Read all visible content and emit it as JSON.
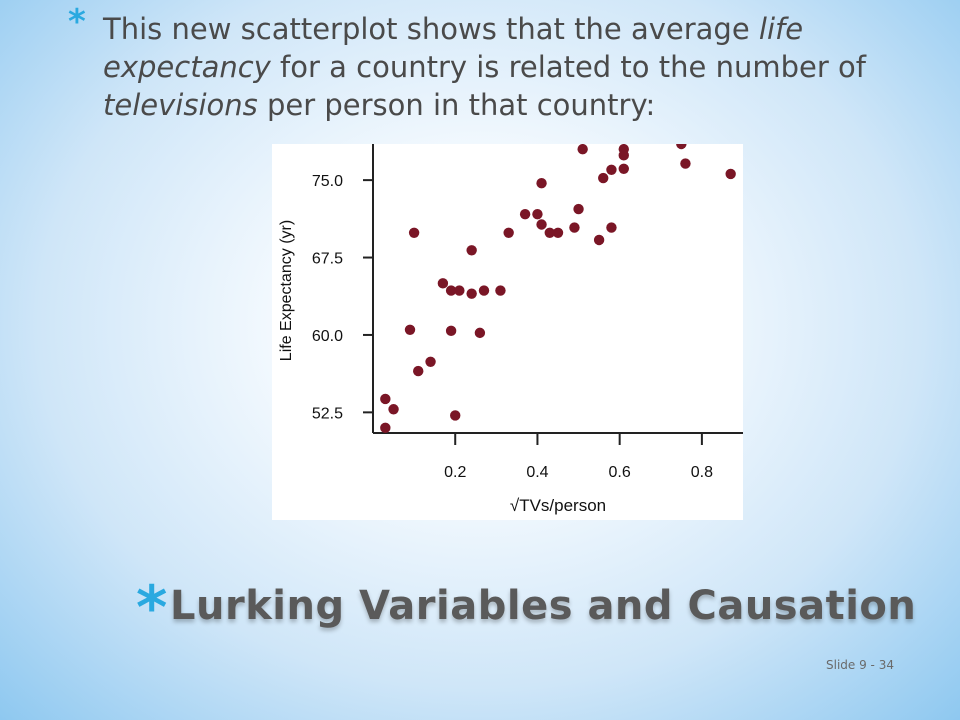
{
  "body": {
    "segments": [
      {
        "text": "This new scatterplot shows that the average ",
        "italic": false
      },
      {
        "text": "life expectancy",
        "italic": true
      },
      {
        "text": " for a country is related to the number of ",
        "italic": false
      },
      {
        "text": "televisions",
        "italic": true
      },
      {
        "text": " per person in that country:",
        "italic": false
      }
    ]
  },
  "title": "Lurking Variables and Causation",
  "slide_number": "Slide 9 - 34",
  "colors": {
    "accent": "#2aa9e0",
    "point": "#7a1626",
    "axis": "#222222"
  },
  "chart_data": {
    "type": "scatter",
    "xlabel": "√TVs/person",
    "ylabel": "Life Expectancy (yr)",
    "xlim": [
      0.0,
      0.9
    ],
    "ylim": [
      50.5,
      78.5
    ],
    "xticks": [
      {
        "value": 0.2,
        "label": "0.2"
      },
      {
        "value": 0.4,
        "label": "0.4"
      },
      {
        "value": 0.6,
        "label": "0.6"
      },
      {
        "value": 0.8,
        "label": "0.8"
      }
    ],
    "yticks": [
      {
        "value": 52.5,
        "label": "52.5"
      },
      {
        "value": 60.0,
        "label": "60.0"
      },
      {
        "value": 67.5,
        "label": "67.5"
      },
      {
        "value": 75.0,
        "label": "75.0"
      }
    ],
    "grid": false,
    "points": [
      {
        "x": 0.03,
        "y": 51.0
      },
      {
        "x": 0.03,
        "y": 53.8
      },
      {
        "x": 0.05,
        "y": 52.8
      },
      {
        "x": 0.09,
        "y": 60.5
      },
      {
        "x": 0.1,
        "y": 69.9
      },
      {
        "x": 0.11,
        "y": 56.5
      },
      {
        "x": 0.14,
        "y": 57.4
      },
      {
        "x": 0.17,
        "y": 65.0
      },
      {
        "x": 0.19,
        "y": 60.4
      },
      {
        "x": 0.19,
        "y": 64.3
      },
      {
        "x": 0.21,
        "y": 64.3
      },
      {
        "x": 0.2,
        "y": 52.2
      },
      {
        "x": 0.24,
        "y": 64.0
      },
      {
        "x": 0.24,
        "y": 68.2
      },
      {
        "x": 0.26,
        "y": 60.2
      },
      {
        "x": 0.27,
        "y": 64.3
      },
      {
        "x": 0.31,
        "y": 64.3
      },
      {
        "x": 0.33,
        "y": 69.9
      },
      {
        "x": 0.37,
        "y": 71.7
      },
      {
        "x": 0.4,
        "y": 71.7
      },
      {
        "x": 0.41,
        "y": 74.7
      },
      {
        "x": 0.41,
        "y": 70.7
      },
      {
        "x": 0.43,
        "y": 69.9
      },
      {
        "x": 0.45,
        "y": 69.9
      },
      {
        "x": 0.49,
        "y": 70.4
      },
      {
        "x": 0.5,
        "y": 72.2
      },
      {
        "x": 0.51,
        "y": 78.0
      },
      {
        "x": 0.55,
        "y": 69.2
      },
      {
        "x": 0.56,
        "y": 75.2
      },
      {
        "x": 0.58,
        "y": 76.0
      },
      {
        "x": 0.58,
        "y": 70.4
      },
      {
        "x": 0.61,
        "y": 77.4
      },
      {
        "x": 0.61,
        "y": 78.0
      },
      {
        "x": 0.61,
        "y": 76.1
      },
      {
        "x": 0.75,
        "y": 78.5
      },
      {
        "x": 0.76,
        "y": 76.6
      },
      {
        "x": 0.87,
        "y": 75.6
      }
    ]
  }
}
